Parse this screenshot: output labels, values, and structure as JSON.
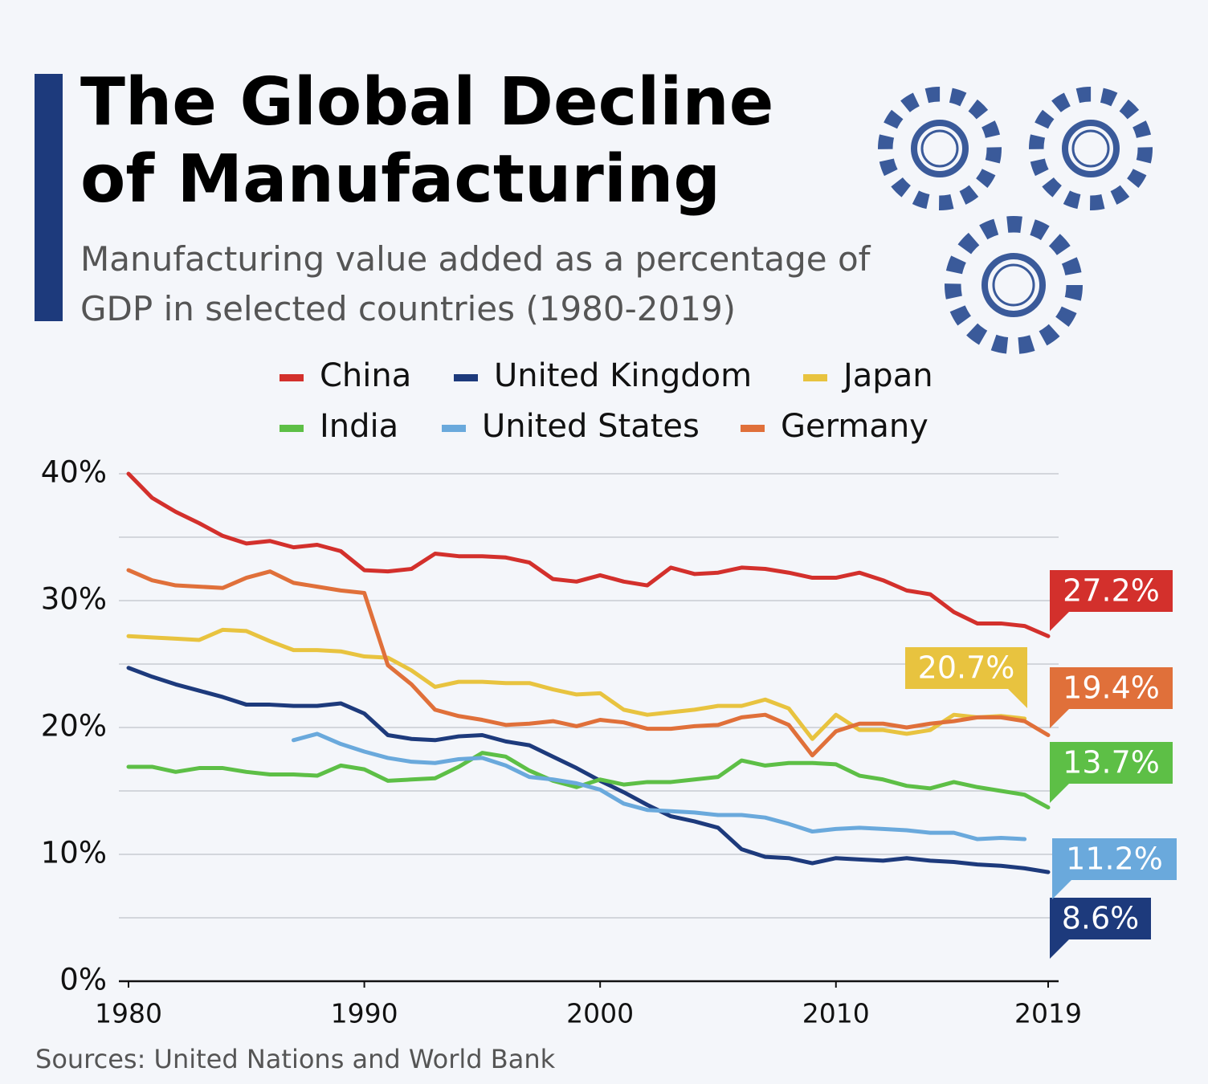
{
  "chart_data": {
    "type": "line",
    "title": "The Global Decline of Manufacturing",
    "subtitle": "Manufacturing value added as a percentage of GDP in selected countries (1980-2019)",
    "source": "Sources: United Nations and World Bank",
    "x": [
      1980,
      1981,
      1982,
      1983,
      1984,
      1985,
      1986,
      1987,
      1988,
      1989,
      1990,
      1991,
      1992,
      1993,
      1994,
      1995,
      1996,
      1997,
      1998,
      1999,
      2000,
      2001,
      2002,
      2003,
      2004,
      2005,
      2006,
      2007,
      2008,
      2009,
      2010,
      2011,
      2012,
      2013,
      2014,
      2015,
      2016,
      2017,
      2018,
      2019
    ],
    "xlim": [
      1980,
      2019
    ],
    "xticks": [
      1980,
      1990,
      2000,
      2010,
      2019
    ],
    "ylim": [
      0,
      40
    ],
    "yticks": [
      {
        "value": 0,
        "label": "0%"
      },
      {
        "value": 10,
        "label": "10%"
      },
      {
        "value": 20,
        "label": "20%"
      },
      {
        "value": 30,
        "label": "30%"
      },
      {
        "value": 40,
        "label": "40%"
      }
    ],
    "minor_grid": [
      5,
      15,
      25,
      35
    ],
    "grid": true,
    "series": [
      {
        "name": "China",
        "color": "#d3302c",
        "values": [
          40.0,
          38.1,
          37.0,
          36.1,
          35.1,
          34.5,
          34.7,
          34.2,
          34.4,
          33.9,
          32.4,
          32.3,
          32.5,
          33.7,
          33.5,
          33.5,
          33.4,
          33.0,
          31.7,
          31.5,
          32.0,
          31.5,
          31.2,
          32.6,
          32.1,
          32.2,
          32.6,
          32.5,
          32.2,
          31.8,
          31.8,
          32.2,
          31.6,
          30.8,
          30.5,
          29.1,
          28.2,
          28.2,
          28.0,
          27.2
        ],
        "value_labels": [
          null,
          null,
          null,
          null,
          null,
          null,
          null,
          null,
          null,
          null,
          null,
          null,
          null,
          null,
          null,
          null,
          null,
          null,
          null,
          null,
          null,
          null,
          null,
          null,
          null,
          null,
          null,
          null,
          null,
          null,
          null,
          null,
          null,
          null,
          null,
          null,
          null,
          null,
          null,
          "27.2%"
        ]
      },
      {
        "name": "United Kingdom",
        "color": "#1d3a7c",
        "values": [
          24.7,
          24.0,
          23.4,
          22.9,
          22.4,
          21.8,
          21.8,
          21.7,
          21.7,
          21.9,
          21.1,
          19.4,
          19.1,
          19.0,
          19.3,
          19.4,
          18.9,
          18.6,
          17.7,
          16.8,
          15.8,
          14.9,
          13.9,
          13.0,
          12.6,
          12.1,
          10.4,
          9.8,
          9.7,
          9.3,
          9.7,
          9.6,
          9.5,
          9.7,
          9.5,
          9.4,
          9.2,
          9.1,
          8.9,
          8.6
        ],
        "value_labels": [
          null,
          null,
          null,
          null,
          null,
          null,
          null,
          null,
          null,
          null,
          null,
          null,
          null,
          null,
          null,
          null,
          null,
          null,
          null,
          null,
          null,
          null,
          null,
          null,
          null,
          null,
          null,
          null,
          null,
          null,
          null,
          null,
          null,
          null,
          null,
          null,
          null,
          null,
          null,
          "8.6%"
        ]
      },
      {
        "name": "Japan",
        "color": "#e8c33f",
        "values": [
          27.2,
          27.1,
          27.0,
          26.9,
          27.7,
          27.6,
          26.8,
          26.1,
          26.1,
          26.0,
          25.6,
          25.5,
          24.5,
          23.2,
          23.6,
          23.6,
          23.5,
          23.5,
          23.0,
          22.6,
          22.7,
          21.4,
          21.0,
          21.2,
          21.4,
          21.7,
          21.7,
          22.2,
          21.5,
          19.1,
          21.0,
          19.8,
          19.8,
          19.5,
          19.8,
          21.0,
          20.8,
          20.9,
          20.7,
          null
        ],
        "value_labels": [
          null,
          null,
          null,
          null,
          null,
          null,
          null,
          null,
          null,
          null,
          null,
          null,
          null,
          null,
          null,
          null,
          null,
          null,
          null,
          null,
          null,
          null,
          null,
          null,
          null,
          null,
          null,
          null,
          null,
          null,
          null,
          null,
          null,
          null,
          null,
          null,
          null,
          null,
          "20.7%",
          null
        ]
      },
      {
        "name": "India",
        "color": "#5dbf46",
        "values": [
          16.9,
          16.9,
          16.5,
          16.8,
          16.8,
          16.5,
          16.3,
          16.3,
          16.2,
          17.0,
          16.7,
          15.8,
          15.9,
          16.0,
          16.9,
          18.0,
          17.7,
          16.6,
          15.8,
          15.3,
          15.9,
          15.5,
          15.7,
          15.7,
          15.9,
          16.1,
          17.4,
          17.0,
          17.2,
          17.2,
          17.1,
          16.2,
          15.9,
          15.4,
          15.2,
          15.7,
          15.3,
          15.0,
          14.7,
          13.7
        ],
        "value_labels": [
          null,
          null,
          null,
          null,
          null,
          null,
          null,
          null,
          null,
          null,
          null,
          null,
          null,
          null,
          null,
          null,
          null,
          null,
          null,
          null,
          null,
          null,
          null,
          null,
          null,
          null,
          null,
          null,
          null,
          null,
          null,
          null,
          null,
          null,
          null,
          null,
          null,
          null,
          null,
          "13.7%"
        ]
      },
      {
        "name": "United States",
        "color": "#6aa9dc",
        "values": [
          null,
          null,
          null,
          null,
          null,
          null,
          null,
          19.0,
          19.5,
          18.7,
          18.1,
          17.6,
          17.3,
          17.2,
          17.5,
          17.6,
          17.0,
          16.1,
          15.9,
          15.6,
          15.1,
          14.0,
          13.5,
          13.4,
          13.3,
          13.1,
          13.1,
          12.9,
          12.4,
          11.8,
          12.0,
          12.1,
          12.0,
          11.9,
          11.7,
          11.7,
          11.2,
          11.3,
          11.2,
          null
        ],
        "value_labels": [
          null,
          null,
          null,
          null,
          null,
          null,
          null,
          null,
          null,
          null,
          null,
          null,
          null,
          null,
          null,
          null,
          null,
          null,
          null,
          null,
          null,
          null,
          null,
          null,
          null,
          null,
          null,
          null,
          null,
          null,
          null,
          null,
          null,
          null,
          null,
          null,
          null,
          null,
          "11.2%",
          null
        ]
      },
      {
        "name": "Germany",
        "color": "#e0703a",
        "values": [
          32.4,
          31.6,
          31.2,
          31.1,
          31.0,
          31.8,
          32.3,
          31.4,
          31.1,
          30.8,
          30.6,
          24.9,
          23.4,
          21.4,
          20.9,
          20.6,
          20.2,
          20.3,
          20.5,
          20.1,
          20.6,
          20.4,
          19.9,
          19.9,
          20.1,
          20.2,
          20.8,
          21.0,
          20.2,
          17.8,
          19.7,
          20.3,
          20.3,
          20.0,
          20.3,
          20.5,
          20.8,
          20.8,
          20.5,
          19.4
        ],
        "value_labels": [
          null,
          null,
          null,
          null,
          null,
          null,
          null,
          null,
          null,
          null,
          null,
          null,
          null,
          null,
          null,
          null,
          null,
          null,
          null,
          null,
          null,
          null,
          null,
          null,
          null,
          null,
          null,
          null,
          null,
          null,
          null,
          null,
          null,
          null,
          null,
          null,
          null,
          null,
          null,
          "19.4%"
        ]
      }
    ]
  }
}
